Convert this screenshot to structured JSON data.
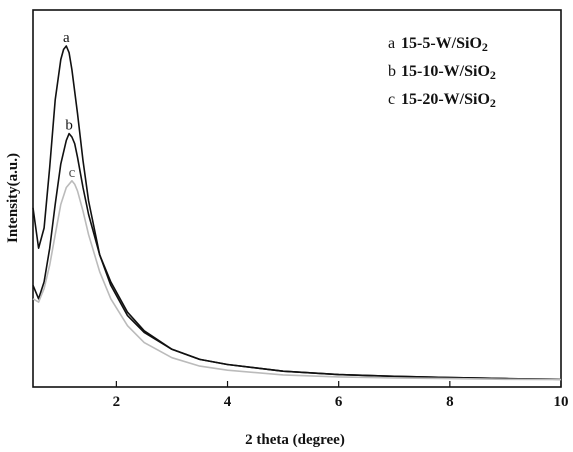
{
  "chart_data": {
    "type": "line",
    "title": "",
    "xlabel": "2 theta (degree)",
    "ylabel": "Intensity(a.u.)",
    "xlim": [
      0.5,
      10
    ],
    "ylim": [
      0,
      100
    ],
    "x_ticks": [
      2,
      4,
      6,
      8,
      10
    ],
    "y_ticks_shown": false,
    "grid": false,
    "legend_position": "top-right",
    "series": [
      {
        "key": "a",
        "label_letter": "a",
        "name": "15-5-W/SiO2",
        "name_main": "15-5-W/SiO",
        "name_sub": "2",
        "color": "#111111",
        "peak_label": "a",
        "x": [
          0.5,
          0.6,
          0.7,
          0.8,
          0.9,
          1.0,
          1.05,
          1.1,
          1.15,
          1.2,
          1.3,
          1.4,
          1.5,
          1.7,
          1.9,
          2.2,
          2.5,
          3.0,
          3.5,
          4.0,
          5.0,
          6.0,
          7.0,
          8.0,
          9.0,
          10.0
        ],
        "y": [
          52,
          40,
          46,
          64,
          84,
          96,
          99,
          100,
          98,
          93,
          80,
          66,
          54,
          38,
          29,
          20,
          15,
          10,
          7,
          5.5,
          3.5,
          2.5,
          2,
          1.6,
          1.3,
          1.1
        ]
      },
      {
        "key": "b",
        "label_letter": "b",
        "name": "15-10-W/SiO2",
        "name_main": "15-10-W/SiO",
        "name_sub": "2",
        "color": "#111111",
        "peak_label": "b",
        "x": [
          0.5,
          0.6,
          0.7,
          0.8,
          0.9,
          1.0,
          1.1,
          1.15,
          1.2,
          1.25,
          1.3,
          1.4,
          1.5,
          1.7,
          1.9,
          2.2,
          2.5,
          3.0,
          3.5,
          4.0,
          5.0,
          6.0,
          7.0,
          8.0,
          9.0,
          10.0
        ],
        "y": [
          29,
          25,
          30,
          40,
          53,
          65,
          72,
          74,
          73,
          71,
          67,
          58,
          50,
          38,
          30,
          21,
          15.5,
          10,
          7,
          5.5,
          3.5,
          2.5,
          2,
          1.6,
          1.3,
          1.1
        ]
      },
      {
        "key": "c",
        "label_letter": "c",
        "name": "15-20-W/SiO2",
        "name_main": "15-20-W/SiO",
        "name_sub": "2",
        "color": "#bbbbbb",
        "peak_label": "c",
        "x": [
          0.5,
          0.6,
          0.7,
          0.8,
          0.9,
          1.0,
          1.1,
          1.2,
          1.25,
          1.3,
          1.4,
          1.5,
          1.7,
          1.9,
          2.2,
          2.5,
          3.0,
          3.5,
          4.0,
          5.0,
          6.0,
          7.0,
          8.0,
          9.0,
          10.0
        ],
        "y": [
          25,
          24,
          28,
          35,
          44,
          53,
          58,
          60,
          59,
          57,
          51,
          44,
          33,
          25,
          17,
          12,
          7.5,
          5,
          3.8,
          2.4,
          1.8,
          1.5,
          1.3,
          1.1,
          1.0
        ]
      }
    ]
  }
}
